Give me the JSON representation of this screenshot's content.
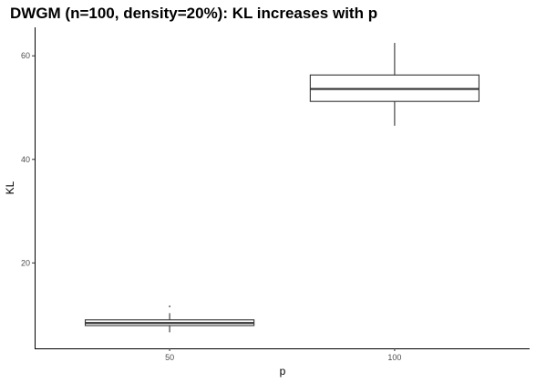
{
  "chart_data": {
    "type": "boxplot",
    "title": "DWGM (n=100, density=20%): KL increases with p",
    "xlabel": "p",
    "ylabel": "KL",
    "categories": [
      "50",
      "100"
    ],
    "ylim": [
      3.5,
      65.5
    ],
    "yticks": [
      20,
      40,
      60
    ],
    "grid": false,
    "boxes": [
      {
        "category": "50",
        "whisker_low": 6.6,
        "q1": 7.9,
        "median": 8.4,
        "q3": 9.0,
        "whisker_high": 10.3,
        "outliers": [
          11.6
        ]
      },
      {
        "category": "100",
        "whisker_low": 46.5,
        "q1": 51.2,
        "median": 53.6,
        "q3": 56.3,
        "whisker_high": 62.5,
        "outliers": []
      }
    ]
  }
}
